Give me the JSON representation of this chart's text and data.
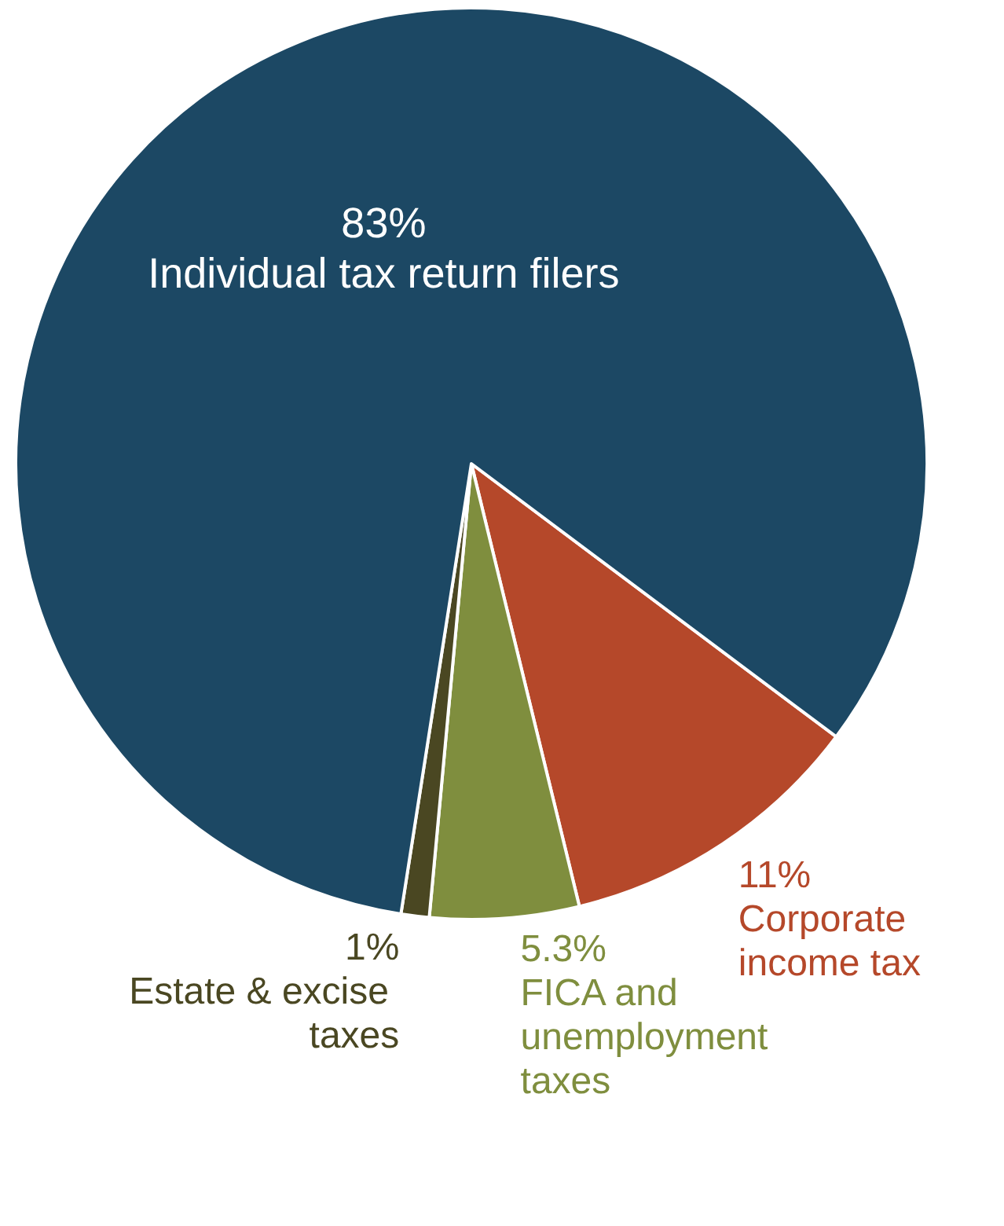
{
  "chart_data": {
    "type": "pie",
    "categories": [
      "Corporate income tax",
      "FICA and unemployment taxes",
      "Estate & excise taxes",
      "Individual tax return filers"
    ],
    "values": [
      11,
      5.3,
      1,
      83
    ],
    "value_labels": [
      "11%",
      "5.3%",
      "1%",
      "83%"
    ],
    "colors": [
      "#b5482a",
      "#7f8e3e",
      "#4a4722",
      "#1c4864"
    ],
    "legend": false
  }
}
